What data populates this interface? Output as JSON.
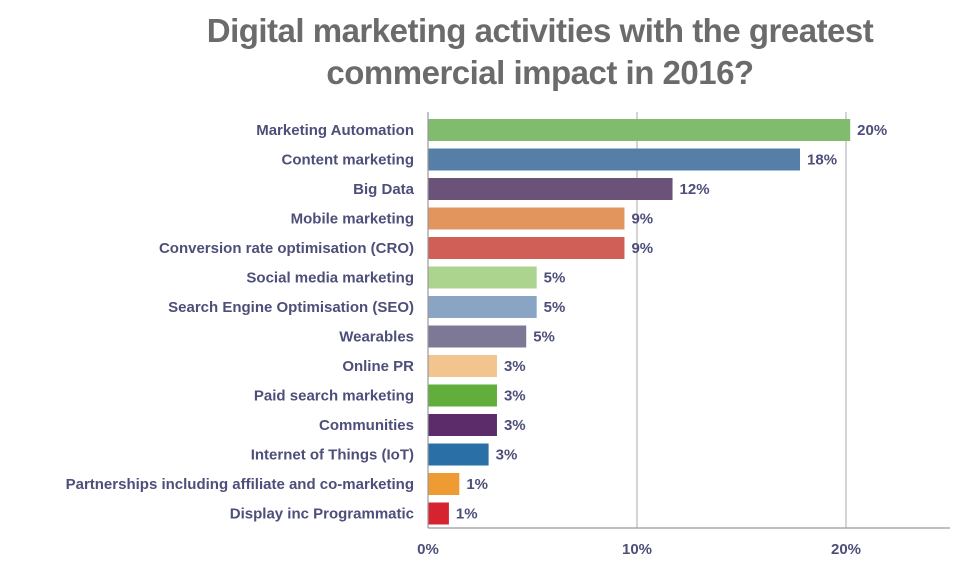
{
  "chart_data": {
    "type": "bar",
    "orientation": "horizontal",
    "title_lines": [
      "Digital marketing activities with the greatest",
      "commercial impact in 2016?"
    ],
    "categories": [
      "Marketing Automation",
      "Content marketing",
      "Big Data",
      "Mobile marketing",
      "Conversion rate optimisation (CRO)",
      "Social media marketing",
      "Search Engine Optimisation (SEO)",
      "Wearables",
      "Online PR",
      "Paid search marketing",
      "Communities",
      "Internet of Things (IoT)",
      "Partnerships including affiliate and co-marketing",
      "Display inc Programmatic"
    ],
    "values": [
      20.2,
      17.8,
      11.7,
      9.4,
      9.4,
      5.2,
      5.2,
      4.7,
      3.3,
      3.3,
      3.3,
      2.9,
      1.5,
      1.0
    ],
    "value_labels": [
      "20%",
      "18%",
      "12%",
      "9%",
      "9%",
      "5%",
      "5%",
      "5%",
      "3%",
      "3%",
      "3%",
      "3%",
      "1%",
      "1%"
    ],
    "colors": [
      "#80bb6e",
      "#567fa8",
      "#6a5278",
      "#e2965e",
      "#cf5f57",
      "#add48f",
      "#8aa5c4",
      "#7c7896",
      "#f2c58e",
      "#62ae3d",
      "#5b2c69",
      "#2a6fa6",
      "#ef9b33",
      "#d5232f"
    ],
    "xlim": [
      0,
      25
    ],
    "xticks": [
      0,
      10,
      20
    ],
    "xtick_labels": [
      "0%",
      "10%",
      "20%"
    ],
    "grid": "vertical",
    "legend": "none"
  }
}
